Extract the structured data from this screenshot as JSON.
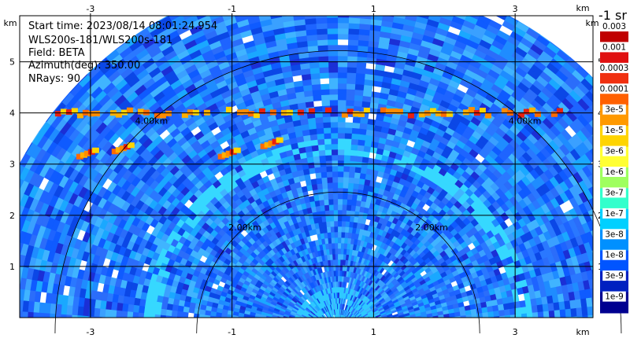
{
  "info": {
    "start_time": "Start time: 2023/08/14 08:01:24.954",
    "instrument": "WLS200s-181/WLS200s-181",
    "field": "Field: BETA",
    "azimuth": "Azimuth(deg): 350.00",
    "nrays": "NRays: 90"
  },
  "colorbar": {
    "title": "-1 sr",
    "labels": [
      "0.003",
      "0.001",
      "0.0003",
      "0.0001",
      "3e-5",
      "1e-5",
      "3e-6",
      "1e-6",
      "3e-7",
      "1e-7",
      "3e-8",
      "1e-8",
      "3e-9",
      "1e-9"
    ],
    "colors": [
      "#c00000",
      "#e01010",
      "#f03010",
      "#ff6000",
      "#ff9900",
      "#ffd400",
      "#ffff33",
      "#9fff5f",
      "#33ffcc",
      "#00d0ff",
      "#0090ff",
      "#0055ff",
      "#0020c0",
      "#000090"
    ]
  },
  "chart_data": {
    "type": "heatmap",
    "subtype": "RHI range-height scan",
    "field": "BETA",
    "x_unit": "km",
    "y_unit": "km",
    "xlim": [
      -4.0,
      4.1
    ],
    "ylim": [
      0,
      5.9
    ],
    "x_ticks": [
      "-3",
      "-1",
      "1",
      "3"
    ],
    "x_tick_values": [
      -3,
      -1,
      1,
      3
    ],
    "y_ticks": [
      "1",
      "2",
      "3",
      "4",
      "5"
    ],
    "y_tick_values": [
      1,
      2,
      3,
      4,
      5
    ],
    "axis_unit_labels": [
      "km",
      "km",
      "km",
      "km"
    ],
    "range_rings": [
      {
        "label": "2.00km",
        "radius_km": 2
      },
      {
        "label": "4.00km",
        "radius_km": 4
      }
    ],
    "max_range_km": 5.1,
    "high_backscatter_layer_km": 4.0,
    "grid": true,
    "colorbar_scale": "log"
  }
}
